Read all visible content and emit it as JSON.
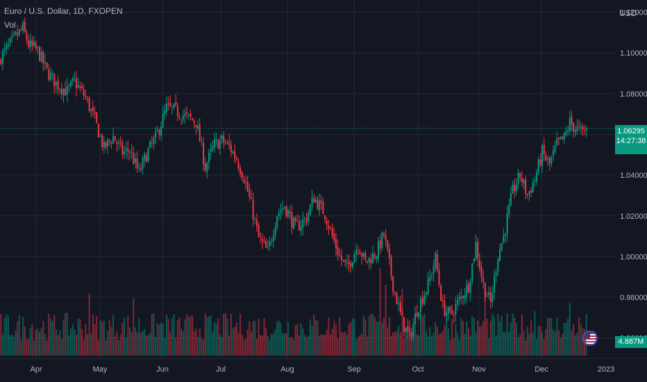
{
  "header": {
    "symbol": "Euro / U.S. Dollar, 1D, FXOPEN",
    "indicator": "Vol",
    "currency": "USD"
  },
  "badges": {
    "last_price": "1.06295",
    "countdown": "14:27:38",
    "volume": "4.887M"
  },
  "colors": {
    "up": "#089981",
    "down": "#f23645",
    "background": "#131722",
    "grid": "#262a35",
    "text": "#b2b5be"
  },
  "chart_data": {
    "type": "candlestick",
    "y_ticks": [
      "1.12000",
      "1.10000",
      "1.08000",
      "1.06000",
      "1.04000",
      "1.02000",
      "1.00000",
      "0.98000",
      "0.96000"
    ],
    "x_ticks": [
      "Apr",
      "May",
      "Jun",
      "Jul",
      "Aug",
      "Sep",
      "Oct",
      "Nov",
      "Dec",
      "2023"
    ],
    "ylim": [
      0.95,
      1.126
    ],
    "grid": true,
    "last_price": 1.06295,
    "close_path": [
      [
        0,
        1.098
      ],
      [
        8,
        1.108
      ],
      [
        12,
        1.112
      ],
      [
        15,
        1.104
      ],
      [
        20,
        1.101
      ],
      [
        25,
        1.091
      ],
      [
        30,
        1.085
      ],
      [
        36,
        1.081
      ],
      [
        40,
        1.086
      ],
      [
        46,
        1.078
      ],
      [
        51,
        1.067
      ],
      [
        56,
        1.053
      ],
      [
        61,
        1.059
      ],
      [
        66,
        1.051
      ],
      [
        70,
        1.052
      ],
      [
        75,
        1.041
      ],
      [
        80,
        1.052
      ],
      [
        84,
        1.058
      ],
      [
        90,
        1.073
      ],
      [
        94,
        1.072
      ],
      [
        100,
        1.069
      ],
      [
        106,
        1.066
      ],
      [
        111,
        1.044
      ],
      [
        116,
        1.055
      ],
      [
        120,
        1.057
      ],
      [
        124,
        1.054
      ],
      [
        128,
        1.048
      ],
      [
        132,
        1.039
      ],
      [
        136,
        1.025
      ],
      [
        140,
        1.009
      ],
      [
        145,
        1.002
      ],
      [
        150,
        1.021
      ],
      [
        154,
        1.025
      ],
      [
        160,
        1.014
      ],
      [
        166,
        1.019
      ],
      [
        170,
        1.029
      ],
      [
        176,
        1.021
      ],
      [
        180,
        1.01
      ],
      [
        184,
        1.0
      ],
      [
        188,
        0.994
      ],
      [
        194,
        1.006
      ],
      [
        198,
        0.997
      ],
      [
        204,
        1.002
      ],
      [
        208,
        1.011
      ],
      [
        213,
        0.986
      ],
      [
        218,
        0.968
      ],
      [
        222,
        0.96
      ],
      [
        226,
        0.974
      ],
      [
        232,
        0.986
      ],
      [
        236,
        0.999
      ],
      [
        240,
        0.975
      ],
      [
        244,
        0.971
      ],
      [
        250,
        0.98
      ],
      [
        254,
        0.986
      ],
      [
        258,
        1.006
      ],
      [
        262,
        0.986
      ],
      [
        266,
        0.977
      ],
      [
        270,
        1.001
      ],
      [
        273,
        1.01
      ],
      [
        278,
        1.032
      ],
      [
        282,
        1.04
      ],
      [
        286,
        1.03
      ],
      [
        290,
        1.038
      ],
      [
        294,
        1.051
      ],
      [
        298,
        1.045
      ],
      [
        302,
        1.055
      ],
      [
        306,
        1.058
      ],
      [
        309,
        1.066
      ],
      [
        312,
        1.063
      ],
      [
        316,
        1.061
      ],
      [
        318,
        1.06295
      ]
    ],
    "volume": {
      "typical": 2.2,
      "spikes": [
        [
          48,
          4.5
        ],
        [
          72,
          4.1
        ],
        [
          206,
          6.3
        ],
        [
          209,
          5.1
        ],
        [
          218,
          4.8
        ],
        [
          263,
          4.9
        ],
        [
          290,
          3.2
        ],
        [
          309,
          3.8
        ]
      ],
      "max": 7.0
    }
  }
}
